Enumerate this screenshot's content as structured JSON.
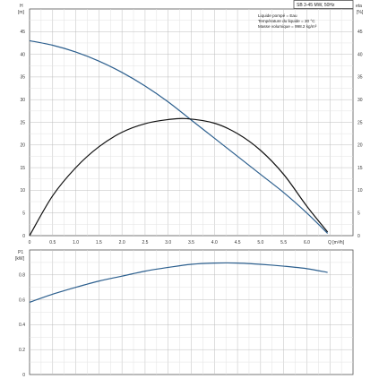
{
  "chart_data": [
    {
      "type": "line",
      "title_box": "SB 3-45 MW, 50Hz",
      "left_axis": {
        "label": "H",
        "unit": "[m]",
        "ylim": [
          0,
          50
        ],
        "ticks": [
          0,
          5,
          10,
          15,
          20,
          25,
          30,
          35,
          40,
          45
        ]
      },
      "right_axis": {
        "label": "eta",
        "unit": "[%]",
        "ylim": [
          0,
          50
        ],
        "ticks": [
          0,
          5,
          10,
          15,
          20,
          25,
          30,
          35,
          40,
          45
        ]
      },
      "x_axis": {
        "label": "Q [m³/h]",
        "xlim": [
          0,
          7
        ],
        "ticks": [
          "0",
          "0.5",
          "1.0",
          "1.5",
          "2.0",
          "2.5",
          "3.0",
          "3.5",
          "4.0",
          "4.5",
          "5.0",
          "5.5",
          "6.0"
        ]
      },
      "annotations": [
        "Liquide pompé = Eau",
        "Température du liquide = 20 °C",
        "Masse volumique = 998.2 kg/m³"
      ],
      "grid": true,
      "series": [
        {
          "color": "#2c5f8e",
          "axis": "left",
          "points": [
            [
              0,
              43
            ],
            [
              0.5,
              42
            ],
            [
              1.0,
              40.5
            ],
            [
              1.5,
              38.5
            ],
            [
              2.0,
              36
            ],
            [
              2.5,
              33
            ],
            [
              3.0,
              29.5
            ],
            [
              3.5,
              25.5
            ],
            [
              4.0,
              21.5
            ],
            [
              4.5,
              17.5
            ],
            [
              5.0,
              13.5
            ],
            [
              5.5,
              9.5
            ],
            [
              6.0,
              5
            ],
            [
              6.45,
              0.5
            ]
          ]
        },
        {
          "color": "#111111",
          "axis": "right",
          "points": [
            [
              0,
              0
            ],
            [
              0.5,
              8.8
            ],
            [
              1.0,
              15
            ],
            [
              1.5,
              19.6
            ],
            [
              2.0,
              22.8
            ],
            [
              2.5,
              24.7
            ],
            [
              3.0,
              25.6
            ],
            [
              3.4,
              25.8
            ],
            [
              4.0,
              24.8
            ],
            [
              4.5,
              22.5
            ],
            [
              5.0,
              18.8
            ],
            [
              5.5,
              13.5
            ],
            [
              6.0,
              6.5
            ],
            [
              6.45,
              0.8
            ]
          ]
        }
      ]
    },
    {
      "type": "line",
      "left_axis": {
        "label": "P1",
        "unit": "[kW]",
        "ylim": [
          0,
          1.0
        ],
        "ticks": [
          "0",
          "0.2",
          "0.4",
          "0.6",
          "0.8"
        ]
      },
      "xlim": [
        0,
        7
      ],
      "grid": true,
      "series": [
        {
          "color": "#2c5f8e",
          "points": [
            [
              0,
              0.58
            ],
            [
              0.5,
              0.645
            ],
            [
              1.0,
              0.7
            ],
            [
              1.5,
              0.75
            ],
            [
              2.0,
              0.79
            ],
            [
              2.5,
              0.83
            ],
            [
              3.0,
              0.86
            ],
            [
              3.5,
              0.885
            ],
            [
              4.0,
              0.895
            ],
            [
              4.5,
              0.895
            ],
            [
              5.0,
              0.885
            ],
            [
              5.5,
              0.87
            ],
            [
              6.0,
              0.85
            ],
            [
              6.45,
              0.82
            ]
          ]
        }
      ]
    }
  ]
}
